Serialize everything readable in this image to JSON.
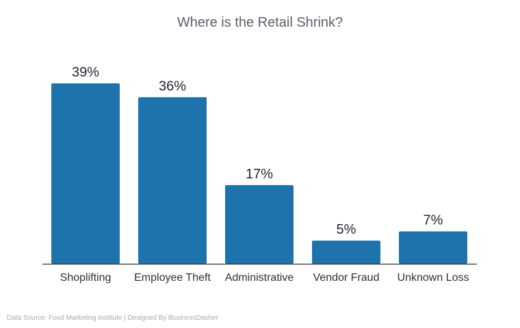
{
  "chart_data": {
    "type": "bar",
    "title": "Where is the Retail Shrink?",
    "categories": [
      "Shoplifting",
      "Employee Theft",
      "Administrative",
      "Vendor Fraud",
      "Unknown Loss"
    ],
    "values": [
      39,
      36,
      17,
      5,
      7
    ],
    "value_labels": [
      "39%",
      "36%",
      "17%",
      "5%",
      "7%"
    ],
    "unit": "%",
    "ylim": [
      0,
      39
    ],
    "grid": false,
    "legend": "none",
    "bar_color": "#1f73ad",
    "axis_color": "#333333"
  },
  "footer": {
    "source": "Data Source: Food Marketing Institute | Designed By BusinessDasher"
  }
}
